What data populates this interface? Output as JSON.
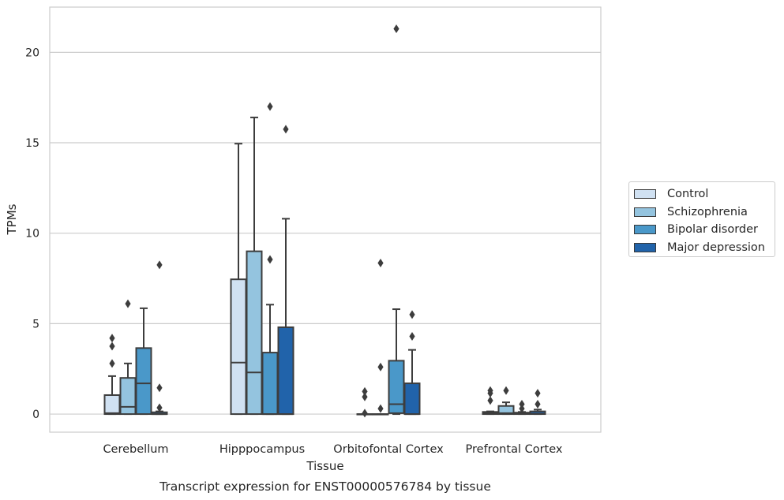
{
  "chart_data": {
    "type": "box",
    "title": "Transcript expression for ENST00000576784 by tissue",
    "xlabel": "Tissue",
    "ylabel": "TPMs",
    "ylim": [
      -1,
      22.5
    ],
    "yticks": [
      0,
      5,
      10,
      15,
      20
    ],
    "grid": "horizontal",
    "legend_position": "right",
    "categories": [
      "Cerebellum",
      "Hipppocampus",
      "Orbitofontal Cortex",
      "Prefrontal Cortex"
    ],
    "series": [
      {
        "name": "Control",
        "color": "#d0e1f2",
        "boxes": [
          {
            "whislo": 0,
            "q1": 0,
            "med": 0.05,
            "q3": 1.05,
            "whishi": 2.1,
            "fliers": [
              2.8,
              3.75,
              4.2
            ]
          },
          {
            "whislo": 0,
            "q1": 0,
            "med": 2.85,
            "q3": 7.45,
            "whishi": 14.95,
            "fliers": []
          },
          {
            "whislo": 0,
            "q1": 0,
            "med": 0,
            "q3": 0,
            "whishi": 0,
            "fliers": [
              0.05,
              0.95,
              1.25
            ]
          },
          {
            "whislo": 0,
            "q1": 0,
            "med": 0.05,
            "q3": 0.12,
            "whishi": 0.15,
            "fliers": [
              0.75,
              1.15,
              1.3
            ]
          }
        ]
      },
      {
        "name": "Schizophrenia",
        "color": "#94c4df",
        "boxes": [
          {
            "whislo": 0,
            "q1": 0,
            "med": 0.4,
            "q3": 2.0,
            "whishi": 2.8,
            "fliers": [
              6.1
            ]
          },
          {
            "whislo": 0,
            "q1": 0,
            "med": 2.3,
            "q3": 9.0,
            "whishi": 16.4,
            "fliers": []
          },
          {
            "whislo": 0,
            "q1": 0,
            "med": 0,
            "q3": 0,
            "whishi": 0,
            "fliers": [
              0.3,
              2.6,
              8.35
            ]
          },
          {
            "whislo": 0,
            "q1": 0,
            "med": 0.05,
            "q3": 0.45,
            "whishi": 0.65,
            "fliers": [
              1.3
            ]
          }
        ]
      },
      {
        "name": "Bipolar disorder",
        "color": "#4a98c9",
        "boxes": [
          {
            "whislo": 0,
            "q1": 0,
            "med": 1.7,
            "q3": 3.65,
            "whishi": 5.85,
            "fliers": []
          },
          {
            "whislo": 0,
            "q1": 0,
            "med": 0,
            "q3": 3.4,
            "whishi": 6.05,
            "fliers": [
              8.55,
              17.0
            ]
          },
          {
            "whislo": 0,
            "q1": 0.05,
            "med": 0.55,
            "q3": 2.95,
            "whishi": 5.8,
            "fliers": [
              21.3
            ]
          },
          {
            "whislo": 0,
            "q1": 0,
            "med": 0.02,
            "q3": 0.08,
            "whishi": 0.12,
            "fliers": [
              0.3,
              0.55
            ]
          }
        ]
      },
      {
        "name": "Major depression",
        "color": "#2163aa",
        "boxes": [
          {
            "whislo": 0,
            "q1": 0,
            "med": 0,
            "q3": 0.1,
            "whishi": 0.15,
            "fliers": [
              0.35,
              1.45,
              8.25
            ]
          },
          {
            "whislo": 0,
            "q1": 0,
            "med": 0,
            "q3": 4.8,
            "whishi": 10.8,
            "fliers": [
              15.75
            ]
          },
          {
            "whislo": 0,
            "q1": 0,
            "med": 0,
            "q3": 1.7,
            "whishi": 3.55,
            "fliers": [
              4.3,
              5.5
            ]
          },
          {
            "whislo": 0,
            "q1": 0,
            "med": 0.02,
            "q3": 0.15,
            "whishi": 0.25,
            "fliers": [
              0.55,
              1.15
            ]
          }
        ]
      }
    ]
  }
}
